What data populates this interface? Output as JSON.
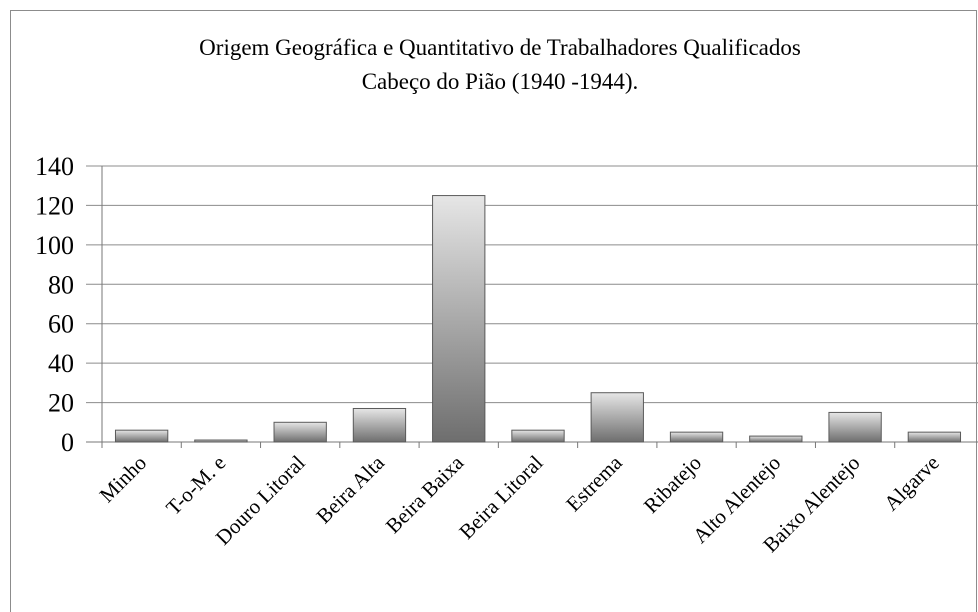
{
  "chart_data": {
    "type": "bar",
    "title": [
      "Origem Geográfica e Quantitativo de Trabalhadores Qualificados",
      "Cabeço do Pião (1940 -1944)."
    ],
    "categories": [
      "Minho",
      "T-o-M. e",
      "Douro Litoral",
      "Beira Alta",
      "Beira Baixa",
      "Beira Litoral",
      "Estrema",
      "Ribatejo",
      "Alto Alentejo",
      "Baixo Alentejo",
      "Algarve"
    ],
    "values": [
      6,
      1,
      10,
      17,
      125,
      6,
      25,
      5,
      3,
      15,
      5
    ],
    "color": "#6e6e6e",
    "ylim": [
      0,
      140
    ],
    "yticks": [
      0,
      20,
      40,
      60,
      80,
      100,
      120,
      140
    ],
    "grid": true
  }
}
